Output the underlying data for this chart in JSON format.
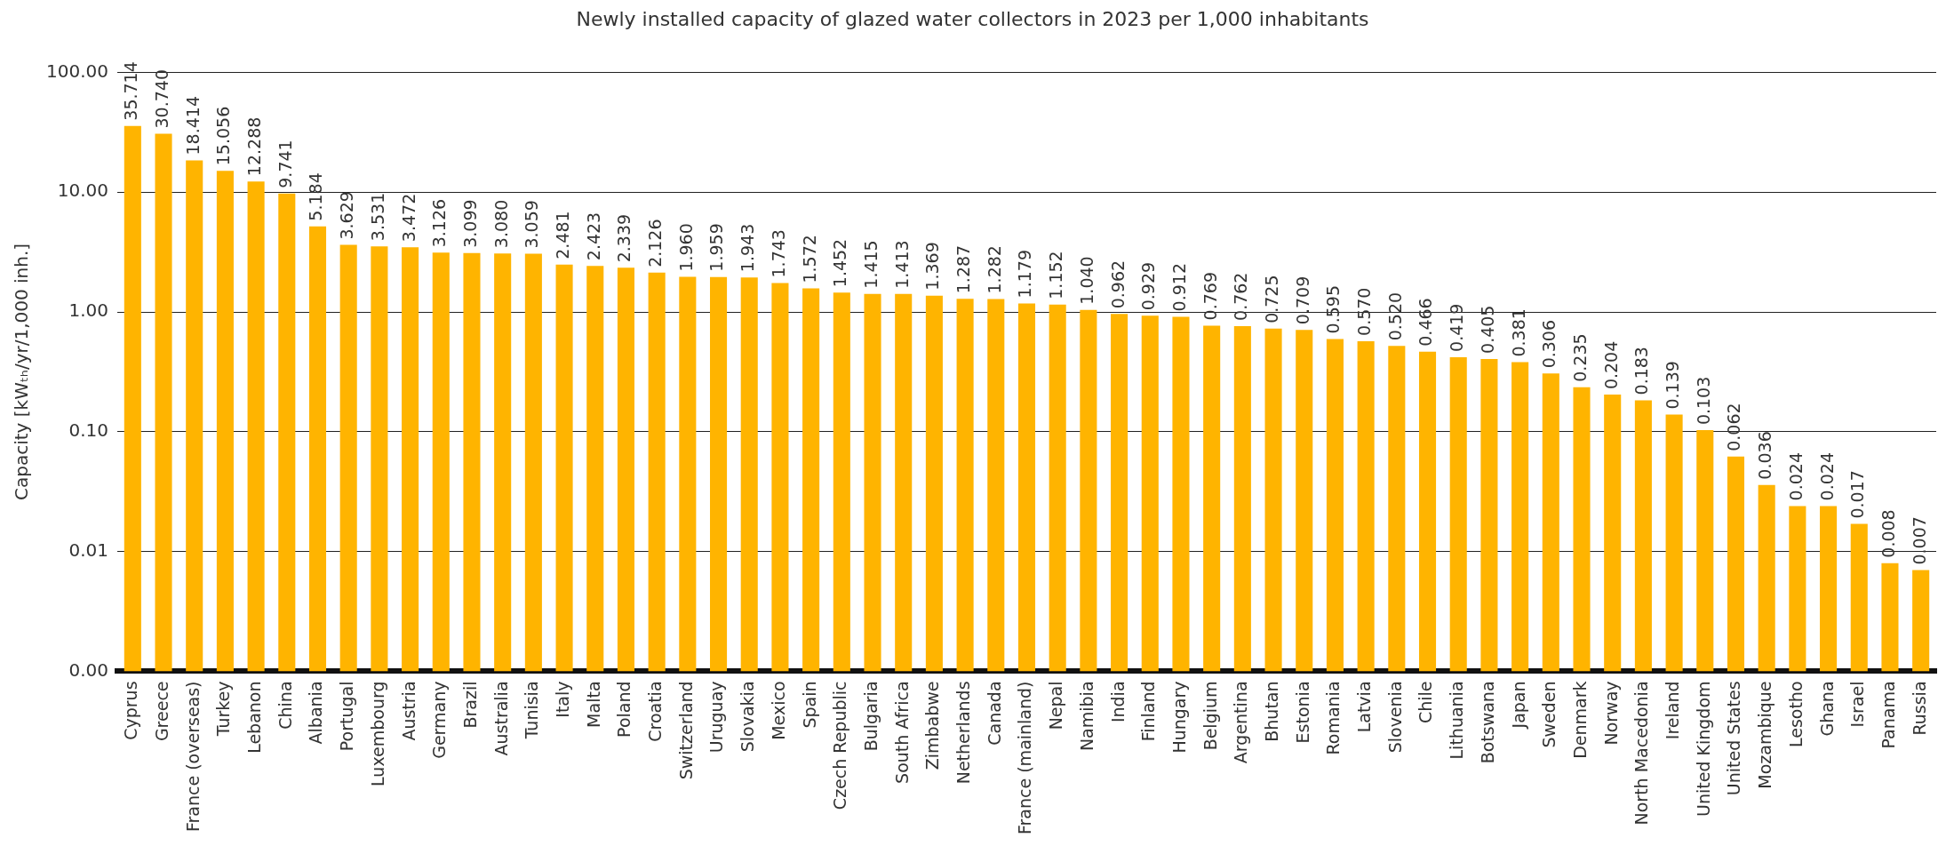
{
  "chart_data": {
    "type": "bar",
    "title": "Newly installed capacity of glazed water collectors in 2023 per 1,000 inhabitants",
    "ylabel": "Capacity [kWₜₕ/yr/1,000 inh.]",
    "categories": [
      "Cyprus",
      "Greece",
      "France (overseas)",
      "Turkey",
      "Lebanon",
      "China",
      "Albania",
      "Portugal",
      "Luxembourg",
      "Austria",
      "Germany",
      "Brazil",
      "Australia",
      "Tunisia",
      "Italy",
      "Malta",
      "Poland",
      "Croatia",
      "Switzerland",
      "Uruguay",
      "Slovakia",
      "Mexico",
      "Spain",
      "Czech Republic",
      "Bulgaria",
      "South Africa",
      "Zimbabwe",
      "Netherlands",
      "Canada",
      "France (mainland)",
      "Nepal",
      "Namibia",
      "India",
      "Finland",
      "Hungary",
      "Belgium",
      "Argentina",
      "Bhutan",
      "Estonia",
      "Romania",
      "Latvia",
      "Slovenia",
      "Chile",
      "Lithuania",
      "Botswana",
      "Japan",
      "Sweden",
      "Denmark",
      "Norway",
      "North Macedonia",
      "Ireland",
      "United Kingdom",
      "United States",
      "Mozambique",
      "Lesotho",
      "Ghana",
      "Israel",
      "Panama",
      "Russia"
    ],
    "values": [
      35.714,
      30.74,
      18.414,
      15.056,
      12.288,
      9.741,
      5.184,
      3.629,
      3.531,
      3.472,
      3.126,
      3.099,
      3.08,
      3.059,
      2.481,
      2.423,
      2.339,
      2.126,
      1.96,
      1.959,
      1.943,
      1.743,
      1.572,
      1.452,
      1.415,
      1.413,
      1.369,
      1.287,
      1.282,
      1.179,
      1.152,
      1.04,
      0.962,
      0.929,
      0.912,
      0.769,
      0.762,
      0.725,
      0.709,
      0.595,
      0.57,
      0.52,
      0.466,
      0.419,
      0.405,
      0.381,
      0.306,
      0.235,
      0.204,
      0.183,
      0.139,
      0.103,
      0.062,
      0.036,
      0.024,
      0.024,
      0.017,
      0.008,
      0.007
    ],
    "value_labels": [
      "35.714",
      "30.740",
      "18.414",
      "15.056",
      "12.288",
      "9.741",
      "5.184",
      "3.629",
      "3.531",
      "3.472",
      "3.126",
      "3.099",
      "3.080",
      "3.059",
      "2.481",
      "2.423",
      "2.339",
      "2.126",
      "1.960",
      "1.959",
      "1.943",
      "1.743",
      "1.572",
      "1.452",
      "1.415",
      "1.413",
      "1.369",
      "1.287",
      "1.282",
      "1.179",
      "1.152",
      "1.040",
      "0.962",
      "0.929",
      "0.912",
      "0.769",
      "0.762",
      "0.725",
      "0.709",
      "0.595",
      "0.570",
      "0.520",
      "0.466",
      "0.419",
      "0.405",
      "0.381",
      "0.306",
      "0.235",
      "0.204",
      "0.183",
      "0.139",
      "0.103",
      "0.062",
      "0.036",
      "0.024",
      "0.024",
      "0.017",
      "0.008",
      "0.007"
    ],
    "color": "#ffb400",
    "log": true,
    "ylim": [
      0.001,
      100
    ],
    "yticks": [
      {
        "value": 0.001,
        "label": "0.00"
      },
      {
        "value": 0.01,
        "label": "0.01"
      },
      {
        "value": 0.1,
        "label": "0.10"
      },
      {
        "value": 1,
        "label": "1.00"
      },
      {
        "value": 10,
        "label": "10.00"
      },
      {
        "value": 100,
        "label": "100.00"
      }
    ],
    "grid": "y"
  }
}
